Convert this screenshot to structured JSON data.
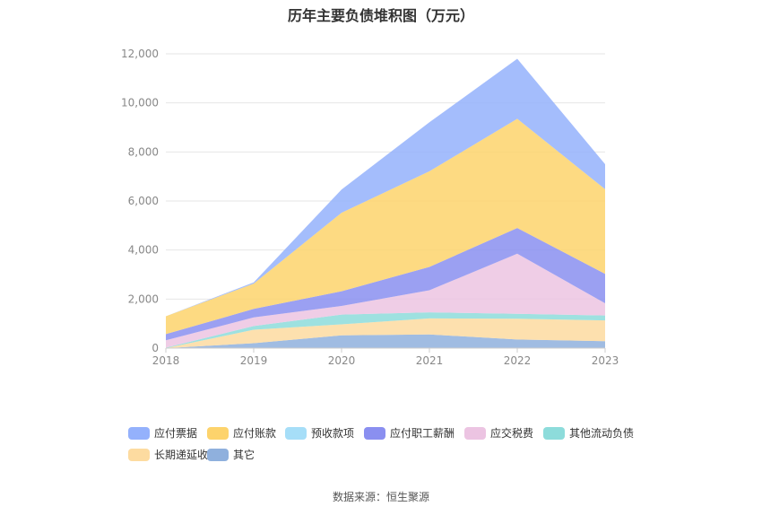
{
  "chart_data": {
    "type": "area",
    "title": "历年主要负债堆积图（万元）",
    "source": "数据来源：恒生聚源",
    "categories": [
      "2018",
      "2019",
      "2020",
      "2021",
      "2022",
      "2023"
    ],
    "ylim": [
      0,
      12000
    ],
    "yticks": [
      "0",
      "2,000",
      "4,000",
      "6,000",
      "8,000",
      "10,000",
      "12,000"
    ],
    "stacked": true,
    "grid": true,
    "legend_position": "bottom",
    "series": [
      {
        "name": "其它",
        "color": "#8fb0dd",
        "values": [
          0,
          200,
          520,
          560,
          350,
          280
        ]
      },
      {
        "name": "长期递延收益",
        "color": "#fddba0",
        "values": [
          0,
          550,
          450,
          650,
          850,
          850
        ]
      },
      {
        "name": "其他流动负债",
        "color": "#8ddcdb",
        "values": [
          20,
          150,
          400,
          250,
          200,
          200
        ]
      },
      {
        "name": "应交税费",
        "color": "#ecc4e2",
        "values": [
          300,
          350,
          350,
          900,
          2450,
          500
        ]
      },
      {
        "name": "应付职工薪酬",
        "color": "#8a8ff0",
        "values": [
          250,
          350,
          600,
          950,
          1050,
          1200
        ]
      },
      {
        "name": "预收款项",
        "color": "#a6def8",
        "values": [
          0,
          0,
          0,
          0,
          0,
          0
        ]
      },
      {
        "name": "应付账款",
        "color": "#fdd36c",
        "values": [
          730,
          1030,
          3200,
          3900,
          4450,
          3450
        ]
      },
      {
        "name": "应付票据",
        "color": "#94b1fc",
        "values": [
          0,
          50,
          950,
          2000,
          2450,
          1020
        ]
      }
    ],
    "legend_order": [
      "应付票据",
      "应付账款",
      "预收款项",
      "应付职工薪酬",
      "应交税费",
      "其他流动负债",
      "长期递延收益",
      "其它"
    ]
  }
}
